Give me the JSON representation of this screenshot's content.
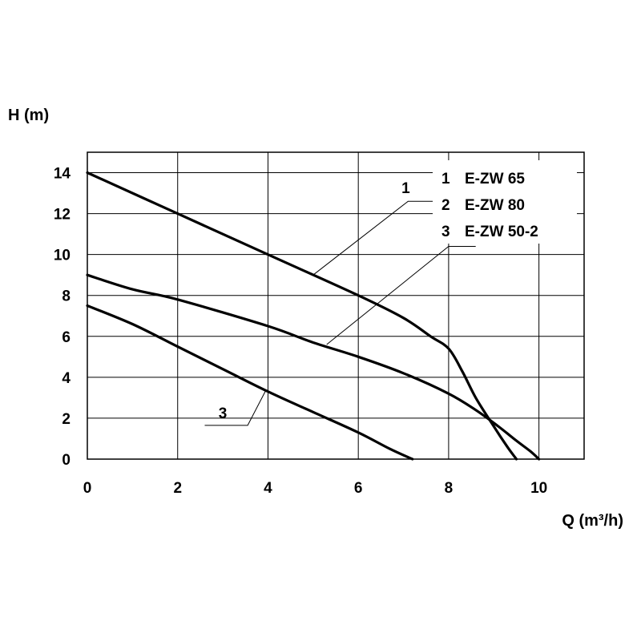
{
  "chart_data": {
    "type": "line",
    "xlabel": "Q (m³/h)",
    "ylabel": "H (m)",
    "xlim": [
      0,
      11
    ],
    "ylim": [
      0,
      15
    ],
    "xticks": [
      0,
      2,
      4,
      6,
      8,
      10
    ],
    "xtick_labels": [
      "0",
      "2",
      "4",
      "6",
      "8",
      "10"
    ],
    "yticks": [
      0,
      2,
      4,
      6,
      8,
      10,
      12,
      14
    ],
    "ytick_labels": [
      "0",
      "2",
      "4",
      "6",
      "8",
      "10",
      "12",
      "14"
    ],
    "grid": true,
    "legend": {
      "position": "top-right",
      "entries": [
        {
          "num": "1",
          "label": "E-ZW 65"
        },
        {
          "num": "2",
          "label": "E-ZW 80"
        },
        {
          "num": "3",
          "label": "E-ZW 50-2"
        }
      ]
    },
    "series": [
      {
        "name": "E-ZW 65",
        "label": "1",
        "points": [
          [
            0,
            14
          ],
          [
            2,
            12
          ],
          [
            4,
            10
          ],
          [
            6,
            8
          ],
          [
            7,
            6.9
          ],
          [
            7.6,
            6.0
          ],
          [
            8.0,
            5.4
          ],
          [
            8.3,
            4.3
          ],
          [
            8.6,
            3.0
          ],
          [
            9.0,
            1.6
          ],
          [
            9.3,
            0.6
          ],
          [
            9.5,
            0
          ]
        ]
      },
      {
        "name": "E-ZW 80",
        "label": "2",
        "points": [
          [
            0,
            9
          ],
          [
            1,
            8.3
          ],
          [
            2,
            7.8
          ],
          [
            4,
            6.5
          ],
          [
            5,
            5.7
          ],
          [
            6,
            5.0
          ],
          [
            7,
            4.2
          ],
          [
            8,
            3.2
          ],
          [
            8.6,
            2.4
          ],
          [
            9.1,
            1.6
          ],
          [
            9.5,
            0.9
          ],
          [
            9.8,
            0.4
          ],
          [
            10,
            0
          ]
        ]
      },
      {
        "name": "E-ZW 50-2",
        "label": "3",
        "points": [
          [
            0,
            7.5
          ],
          [
            1,
            6.6
          ],
          [
            2,
            5.5
          ],
          [
            3,
            4.4
          ],
          [
            4,
            3.3
          ],
          [
            5,
            2.3
          ],
          [
            6,
            1.3
          ],
          [
            6.7,
            0.5
          ],
          [
            7.2,
            0
          ]
        ]
      }
    ]
  }
}
